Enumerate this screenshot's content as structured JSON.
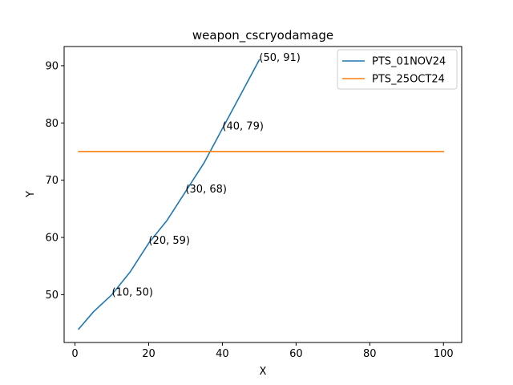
{
  "chart_data": {
    "type": "line",
    "title": "weapon_cscryodamage",
    "xlabel": "X",
    "ylabel": "Y",
    "xlim": [
      -2.95,
      104.95
    ],
    "ylim": [
      41.65,
      93.35
    ],
    "xticks": [
      0,
      20,
      40,
      60,
      80,
      100
    ],
    "yticks": [
      50,
      60,
      70,
      80,
      90
    ],
    "grid": false,
    "legend_position": "top-right",
    "series": [
      {
        "name": "PTS_01NOV24",
        "color": "#1f77b4",
        "x": [
          1,
          5,
          10,
          15,
          20,
          25,
          30,
          35,
          40,
          45,
          50
        ],
        "y": [
          44,
          47,
          50,
          54,
          59,
          63,
          68,
          73,
          79,
          85,
          91
        ]
      },
      {
        "name": "PTS_25OCT24",
        "color": "#ff7f0e",
        "x": [
          1,
          100
        ],
        "y": [
          75,
          75
        ]
      }
    ],
    "annotations": [
      {
        "text": "(10, 50)",
        "x": 10,
        "y": 50
      },
      {
        "text": "(20, 59)",
        "x": 20,
        "y": 59
      },
      {
        "text": "(30, 68)",
        "x": 30,
        "y": 68
      },
      {
        "text": "(40, 79)",
        "x": 40,
        "y": 79
      },
      {
        "text": "(50, 91)",
        "x": 50,
        "y": 91
      }
    ]
  }
}
